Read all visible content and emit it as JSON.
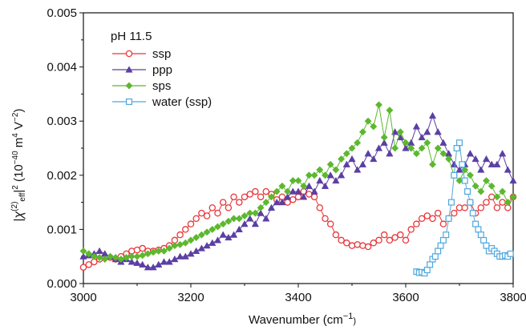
{
  "chart_data": {
    "type": "scatter",
    "xlabel": "Wavenumber (cm⁻¹)",
    "ylabel": "|χ_eff^(2)|² (10⁻⁴⁰ m⁴ V⁻²)",
    "xlim": [
      3000,
      3800
    ],
    "ylim": [
      0.0,
      0.005
    ],
    "x_ticks": [
      3000,
      3200,
      3400,
      3600,
      3800
    ],
    "x_tick_labels": [
      "3000",
      "3200",
      "3400",
      "3600",
      "3800"
    ],
    "y_ticks": [
      0.0,
      0.001,
      0.002,
      0.003,
      0.004,
      0.005
    ],
    "y_tick_labels": [
      "0.000",
      "0.001",
      "0.002",
      "0.003",
      "0.004",
      "0.005"
    ],
    "grid": false,
    "legend_title": "pH 11.5",
    "legend_position": "top-left",
    "series": [
      {
        "name": "ssp",
        "color": "#e8383b",
        "marker": "open-circle",
        "x": [
          3000,
          3010,
          3020,
          3030,
          3040,
          3050,
          3060,
          3070,
          3080,
          3090,
          3100,
          3110,
          3120,
          3130,
          3140,
          3150,
          3160,
          3170,
          3180,
          3190,
          3200,
          3210,
          3220,
          3230,
          3240,
          3250,
          3260,
          3270,
          3280,
          3290,
          3300,
          3310,
          3320,
          3330,
          3340,
          3350,
          3360,
          3370,
          3380,
          3390,
          3400,
          3410,
          3420,
          3430,
          3440,
          3450,
          3460,
          3470,
          3480,
          3490,
          3500,
          3510,
          3520,
          3530,
          3540,
          3550,
          3560,
          3570,
          3580,
          3590,
          3600,
          3610,
          3620,
          3630,
          3640,
          3650,
          3660,
          3670,
          3680,
          3690,
          3700,
          3710,
          3720,
          3730,
          3740,
          3750,
          3760,
          3770,
          3780,
          3790,
          3800
        ],
        "y": [
          0.0003,
          0.00035,
          0.0004,
          0.00045,
          0.0005,
          0.00048,
          0.00045,
          0.0005,
          0.00055,
          0.0006,
          0.00062,
          0.00065,
          0.0006,
          0.0006,
          0.00062,
          0.00065,
          0.0007,
          0.0008,
          0.0009,
          0.001,
          0.0011,
          0.0012,
          0.0013,
          0.00125,
          0.0014,
          0.0013,
          0.0015,
          0.0014,
          0.0016,
          0.0015,
          0.0016,
          0.00165,
          0.0017,
          0.0016,
          0.0017,
          0.00165,
          0.00155,
          0.0016,
          0.0015,
          0.00155,
          0.0016,
          0.0017,
          0.00165,
          0.0016,
          0.0014,
          0.0012,
          0.0011,
          0.0009,
          0.0008,
          0.00075,
          0.0007,
          0.00072,
          0.0007,
          0.00068,
          0.00075,
          0.0008,
          0.0009,
          0.0008,
          0.00085,
          0.0009,
          0.0008,
          0.001,
          0.0011,
          0.0012,
          0.00125,
          0.0012,
          0.0013,
          0.0011,
          0.0012,
          0.0013,
          0.0014,
          0.0014,
          0.0015,
          0.0013,
          0.0014,
          0.0015,
          0.0016,
          0.0014,
          0.0015,
          0.0014,
          0.0016
        ]
      },
      {
        "name": "ppp",
        "color": "#5b3fa3",
        "marker": "filled-triangle",
        "x": [
          3000,
          3010,
          3020,
          3030,
          3040,
          3050,
          3060,
          3070,
          3080,
          3090,
          3100,
          3110,
          3120,
          3130,
          3140,
          3150,
          3160,
          3170,
          3180,
          3190,
          3200,
          3210,
          3220,
          3230,
          3240,
          3250,
          3260,
          3270,
          3280,
          3290,
          3300,
          3310,
          3320,
          3330,
          3340,
          3350,
          3360,
          3370,
          3380,
          3390,
          3400,
          3410,
          3420,
          3430,
          3440,
          3450,
          3460,
          3470,
          3480,
          3490,
          3500,
          3510,
          3520,
          3530,
          3540,
          3550,
          3560,
          3570,
          3580,
          3590,
          3600,
          3610,
          3620,
          3630,
          3640,
          3650,
          3660,
          3670,
          3680,
          3690,
          3700,
          3710,
          3720,
          3730,
          3740,
          3750,
          3760,
          3770,
          3780,
          3790,
          3800
        ],
        "y": [
          0.0005,
          0.00052,
          0.00055,
          0.0006,
          0.00055,
          0.0005,
          0.00045,
          0.0004,
          0.00045,
          0.0004,
          0.00038,
          0.00035,
          0.0003,
          0.0003,
          0.00035,
          0.0004,
          0.0004,
          0.00045,
          0.0005,
          0.0005,
          0.00055,
          0.0006,
          0.00065,
          0.0007,
          0.00075,
          0.0008,
          0.0009,
          0.00085,
          0.0009,
          0.001,
          0.0011,
          0.0012,
          0.0011,
          0.0013,
          0.0012,
          0.0014,
          0.0015,
          0.0015,
          0.0016,
          0.0017,
          0.0017,
          0.0016,
          0.0018,
          0.0017,
          0.0019,
          0.0018,
          0.002,
          0.0019,
          0.002,
          0.0022,
          0.0023,
          0.0021,
          0.0022,
          0.0024,
          0.0023,
          0.0025,
          0.0026,
          0.0024,
          0.0028,
          0.0027,
          0.0025,
          0.0026,
          0.0029,
          0.0027,
          0.0028,
          0.0031,
          0.0028,
          0.0026,
          0.0024,
          0.0022,
          0.0021,
          0.0022,
          0.0024,
          0.0023,
          0.0021,
          0.0023,
          0.0022,
          0.0022,
          0.0024,
          0.0021,
          0.0019
        ]
      },
      {
        "name": "sps",
        "color": "#5cb82e",
        "marker": "filled-diamond",
        "x": [
          3000,
          3010,
          3020,
          3030,
          3040,
          3050,
          3060,
          3070,
          3080,
          3090,
          3100,
          3110,
          3120,
          3130,
          3140,
          3150,
          3160,
          3170,
          3180,
          3190,
          3200,
          3210,
          3220,
          3230,
          3240,
          3250,
          3260,
          3270,
          3280,
          3290,
          3300,
          3310,
          3320,
          3330,
          3340,
          3350,
          3360,
          3370,
          3380,
          3390,
          3400,
          3410,
          3420,
          3430,
          3440,
          3450,
          3460,
          3470,
          3480,
          3490,
          3500,
          3510,
          3520,
          3530,
          3540,
          3550,
          3560,
          3570,
          3580,
          3590,
          3600,
          3610,
          3620,
          3630,
          3640,
          3650,
          3660,
          3670,
          3680,
          3690,
          3700,
          3710,
          3720,
          3730,
          3740,
          3750,
          3760,
          3770,
          3780,
          3790,
          3800
        ],
        "y": [
          0.0006,
          0.00055,
          0.0005,
          0.00048,
          0.00045,
          0.0005,
          0.00048,
          0.00045,
          0.00048,
          0.0005,
          0.0005,
          0.00052,
          0.00055,
          0.00058,
          0.0006,
          0.0006,
          0.00065,
          0.0007,
          0.00072,
          0.00075,
          0.0008,
          0.00085,
          0.0009,
          0.00095,
          0.001,
          0.00105,
          0.0011,
          0.00115,
          0.0012,
          0.0012,
          0.00125,
          0.0013,
          0.0013,
          0.0014,
          0.0015,
          0.0016,
          0.0017,
          0.0018,
          0.0017,
          0.0019,
          0.0019,
          0.0018,
          0.002,
          0.002,
          0.0021,
          0.002,
          0.0022,
          0.0021,
          0.0023,
          0.0024,
          0.0025,
          0.0026,
          0.0028,
          0.003,
          0.0029,
          0.0033,
          0.0027,
          0.0032,
          0.0025,
          0.0028,
          0.0026,
          0.0025,
          0.0024,
          0.0025,
          0.0026,
          0.0022,
          0.0025,
          0.0024,
          0.0023,
          0.002,
          0.0019,
          0.0021,
          0.002,
          0.0018,
          0.0017,
          0.0019,
          0.0018,
          0.0016,
          0.0017,
          0.0015,
          0.0016
        ]
      },
      {
        "name": "water (ssp)",
        "color": "#4fa8dd",
        "marker": "open-square",
        "x": [
          3620,
          3625,
          3630,
          3635,
          3640,
          3645,
          3650,
          3655,
          3660,
          3665,
          3670,
          3675,
          3680,
          3685,
          3690,
          3695,
          3700,
          3705,
          3710,
          3715,
          3720,
          3725,
          3730,
          3735,
          3740,
          3745,
          3750,
          3755,
          3760,
          3765,
          3770,
          3775,
          3780,
          3785,
          3790,
          3795
        ],
        "y": [
          0.00022,
          0.0002,
          0.00021,
          0.00019,
          0.00025,
          0.00035,
          0.00045,
          0.0005,
          0.0006,
          0.0007,
          0.0008,
          0.0009,
          0.0012,
          0.0015,
          0.002,
          0.0025,
          0.0026,
          0.0022,
          0.0019,
          0.0017,
          0.0015,
          0.0013,
          0.0011,
          0.001,
          0.0009,
          0.0008,
          0.0007,
          0.0006,
          0.00065,
          0.0006,
          0.00055,
          0.0005,
          0.0005,
          0.00052,
          0.0005,
          0.00055
        ]
      }
    ]
  }
}
